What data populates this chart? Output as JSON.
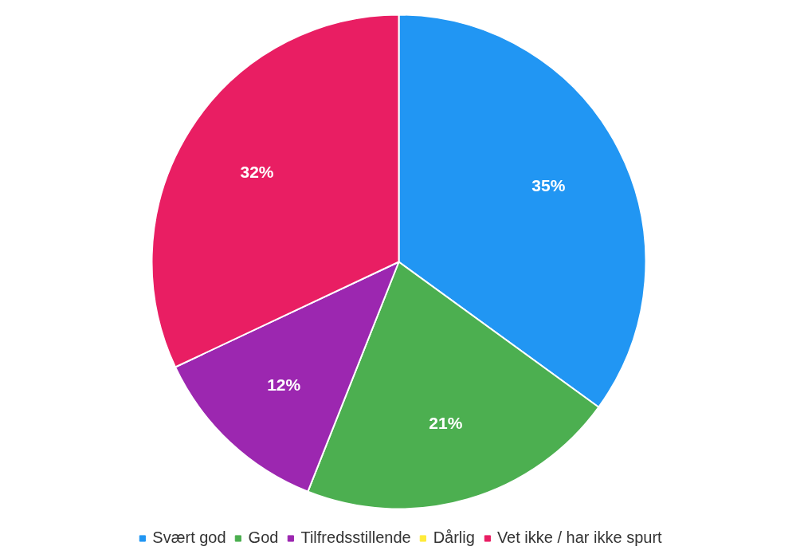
{
  "chart_data": {
    "type": "pie",
    "categories": [
      "Svært god",
      "God",
      "Tilfredsstillende",
      "Dårlig",
      "Vet ikke / har ikke spurt"
    ],
    "values": [
      35,
      21,
      12,
      0,
      32
    ],
    "colors": [
      "#2196f3",
      "#4caf50",
      "#9c27b0",
      "#ffeb3b",
      "#e91e63"
    ],
    "value_labels": [
      "35%",
      "21%",
      "12%",
      null,
      "32%"
    ],
    "legend": "bottom"
  }
}
